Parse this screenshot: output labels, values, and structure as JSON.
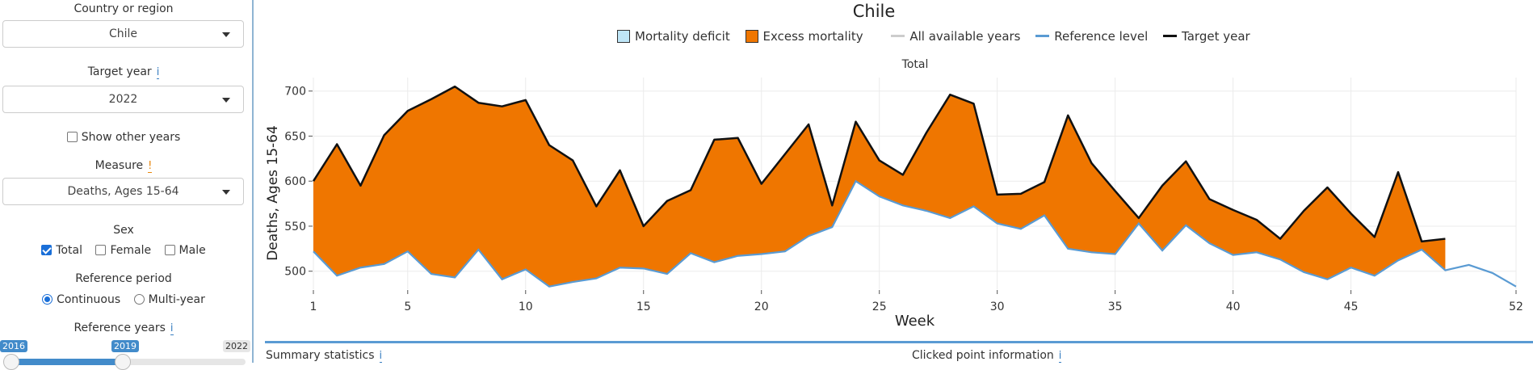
{
  "sidebar": {
    "country_label": "Country or region",
    "country_value": "Chile",
    "target_year_label": "Target year",
    "target_year_info": "i",
    "target_year_value": "2022",
    "show_other_years": "Show other years",
    "measure_label": "Measure",
    "measure_warn": "!",
    "measure_value": "Deaths, Ages 15-64",
    "sex_label": "Sex",
    "sex_options": [
      "Total",
      "Female",
      "Male"
    ],
    "sex_checked": [
      true,
      false,
      false
    ],
    "ref_period_label": "Reference period",
    "ref_period_options": [
      "Continuous",
      "Multi-year"
    ],
    "ref_period_selected": "Continuous",
    "ref_years_label": "Reference years",
    "ref_years_info": "i",
    "ref_years_from": "2016",
    "ref_years_to": "2019",
    "ref_years_max": "2022"
  },
  "main": {
    "title": "Chile",
    "legend": {
      "deficit": "Mortality deficit",
      "excess": "Excess mortality",
      "all_years": "All available years",
      "reference": "Reference level",
      "target": "Target year"
    },
    "subtitle": "Total",
    "summary_label": "Summary statistics",
    "summary_info": "i",
    "clicked_label": "Clicked point information",
    "clicked_info": "i"
  },
  "colors": {
    "excess": "#ef7600",
    "deficit": "#bfe6f7",
    "reference": "#5a9bd3",
    "target": "#111111",
    "all_years": "#cccccc"
  },
  "chart_data": {
    "type": "area",
    "title": "Chile",
    "subtitle": "Total",
    "xlabel": "Week",
    "ylabel": "Deaths, Ages 15-64",
    "xlim": [
      1,
      52
    ],
    "ylim": [
      480,
      715
    ],
    "x_ticks": [
      1,
      5,
      10,
      15,
      20,
      25,
      30,
      35,
      40,
      45,
      52
    ],
    "y_ticks": [
      500,
      550,
      600,
      650,
      700
    ],
    "series": [
      {
        "name": "Target year",
        "x": [
          1,
          2,
          3,
          4,
          5,
          6,
          7,
          8,
          9,
          10,
          11,
          12,
          13,
          14,
          15,
          16,
          17,
          18,
          19,
          20,
          21,
          22,
          23,
          24,
          25,
          26,
          27,
          28,
          29,
          30,
          31,
          32,
          33,
          34,
          35,
          36,
          37,
          38,
          39,
          40,
          41,
          42,
          43,
          44,
          45,
          46,
          47,
          48,
          49
        ],
        "values": [
          600,
          641,
          595,
          651,
          678,
          691,
          705,
          687,
          683,
          690,
          640,
          623,
          572,
          612,
          550,
          578,
          590,
          646,
          648,
          597,
          630,
          663,
          573,
          666,
          623,
          607,
          654,
          696,
          686,
          585,
          586,
          599,
          673,
          620,
          589,
          559,
          595,
          622,
          580,
          568,
          557,
          536,
          567,
          593,
          564,
          538,
          610,
          533,
          536
        ]
      },
      {
        "name": "Reference level",
        "x": [
          1,
          2,
          3,
          4,
          5,
          6,
          7,
          8,
          9,
          10,
          11,
          12,
          13,
          14,
          15,
          16,
          17,
          18,
          19,
          20,
          21,
          22,
          23,
          24,
          25,
          26,
          27,
          28,
          29,
          30,
          31,
          32,
          33,
          34,
          35,
          36,
          37,
          38,
          39,
          40,
          41,
          42,
          43,
          44,
          45,
          46,
          47,
          48,
          49,
          50,
          51,
          52
        ],
        "values": [
          522,
          495,
          504,
          508,
          522,
          497,
          493,
          524,
          491,
          502,
          483,
          488,
          492,
          504,
          503,
          497,
          520,
          510,
          517,
          519,
          522,
          539,
          549,
          600,
          583,
          573,
          567,
          559,
          572,
          553,
          547,
          562,
          525,
          521,
          519,
          553,
          523,
          551,
          531,
          518,
          521,
          513,
          499,
          491,
          504,
          495,
          512,
          524,
          501,
          507,
          498,
          483
        ]
      }
    ],
    "legend": [
      "Mortality deficit",
      "Excess mortality",
      "All available years",
      "Reference level",
      "Target year"
    ],
    "legend_position": "top",
    "grid": true
  }
}
